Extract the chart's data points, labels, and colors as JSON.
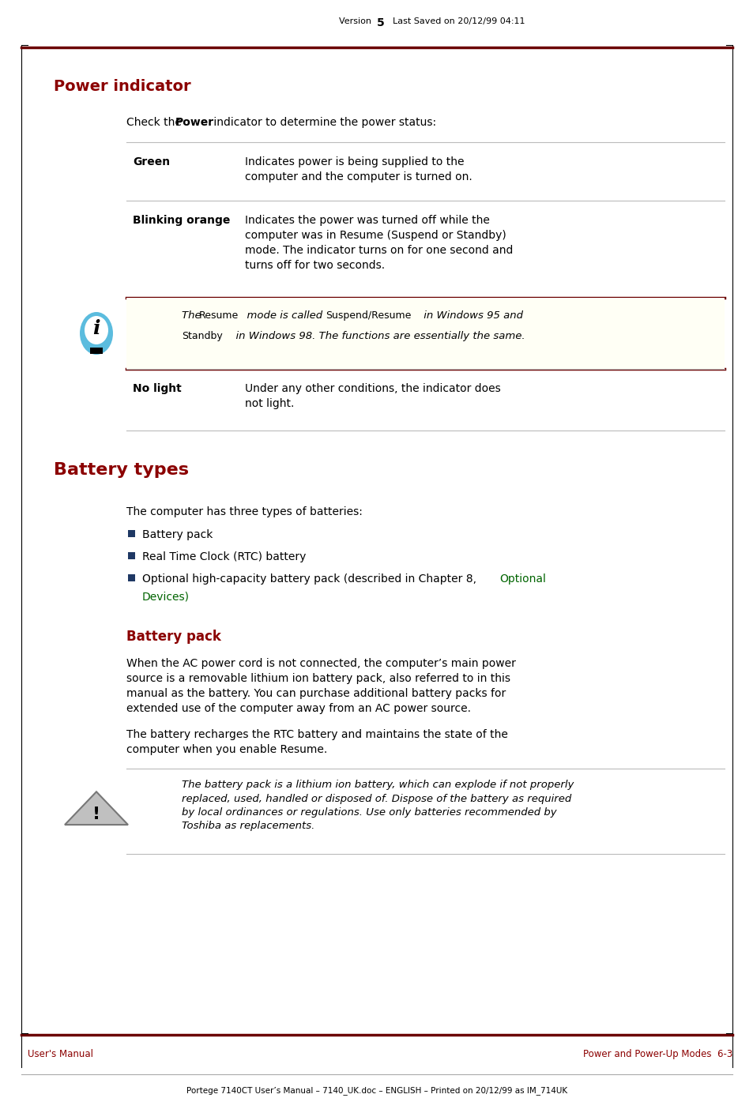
{
  "page_width": 9.54,
  "page_height": 14.09,
  "bg_color": "#ffffff",
  "dark_red": "#6B0000",
  "red_heading": "#8B0000",
  "bullet_color": "#1F3864",
  "link_color": "#006400",
  "note_bg": "#FFFFF0",
  "header_text_plain": "Version  ",
  "header_text_bold": "5",
  "header_text_rest": "   Last Saved on 20/12/99 04:11",
  "footer_left": "User's Manual",
  "footer_right": "Power and Power-Up Modes  6-3",
  "bottom_text": "Portege 7140CT User’s Manual – 7140_UK.doc – ENGLISH – Printed on 20/12/99 as IM_714UK"
}
